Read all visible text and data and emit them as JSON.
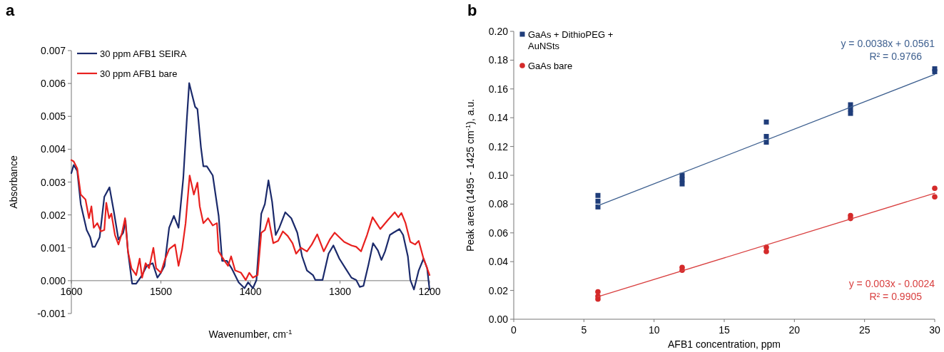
{
  "chart_data": [
    {
      "type": "line",
      "title": "a",
      "xlabel": "Wavenumber, cm$^{-1}$",
      "ylabel": "Absorbance",
      "xlim": [
        1600,
        1200
      ],
      "xticks": [
        1600,
        1500,
        1400,
        1300,
        1200
      ],
      "ylim": [
        -0.001,
        0.007
      ],
      "yticks": [
        {
          "value": -0.001,
          "label": "-0.001"
        },
        {
          "value": 0,
          "label": "0.000"
        },
        {
          "value": 0.001,
          "label": "0.001"
        },
        {
          "value": 0.002,
          "label": "0.002"
        },
        {
          "value": 0.003,
          "label": "0.003"
        },
        {
          "value": 0.004,
          "label": "0.004"
        },
        {
          "value": 0.005,
          "label": "0.005"
        },
        {
          "value": 0.006,
          "label": "0.006"
        },
        {
          "value": 0.007,
          "label": "0.007"
        }
      ],
      "legend": "top left",
      "series": [
        {
          "name": "30 ppm AFB1 SEIRA",
          "color": "#1b2a6b",
          "x": [
            1600,
            1597.4,
            1593.4,
            1589.5,
            1582.9,
            1578.9,
            1576.3,
            1573.7,
            1568.4,
            1563.2,
            1557.4,
            1552.6,
            1547.4,
            1542.1,
            1539.5,
            1536.8,
            1532.1,
            1527.6,
            1521,
            1515.8,
            1509.2,
            1503.9,
            1500,
            1496,
            1490.8,
            1485.5,
            1480.3,
            1475,
            1471,
            1468.4,
            1465.8,
            1461.8,
            1459.2,
            1455.3,
            1452.6,
            1448.7,
            1442.1,
            1435.5,
            1431.6,
            1426.3,
            1421.1,
            1413.2,
            1406.6,
            1402.6,
            1397.3,
            1393.3,
            1387.9,
            1383.9,
            1379.9,
            1375.8,
            1371.8,
            1367.8,
            1361.1,
            1354.4,
            1347.7,
            1342.3,
            1336.9,
            1330.2,
            1327.5,
            1319.5,
            1312.8,
            1307.4,
            1300.7,
            1294,
            1287.2,
            1281.9,
            1277.9,
            1273.8,
            1268.5,
            1263.1,
            1257.7,
            1253.7,
            1249.7,
            1244.3,
            1240.3,
            1233.6,
            1229.5,
            1224.2,
            1221.5,
            1217.4,
            1212.1,
            1206.7,
            1202.7,
            1200
          ],
          "values": [
            0.00327,
            0.00352,
            0.00334,
            0.00233,
            0.00154,
            0.00132,
            0.00103,
            0.00103,
            0.00132,
            0.00255,
            0.00284,
            0.00211,
            0.00125,
            0.00146,
            0.00183,
            0.00089,
            -9e-05,
            -9e-05,
            0.00017,
            0.00045,
            0.00053,
            9e-05,
            0.00024,
            0.00045,
            0.00161,
            0.00197,
            0.00161,
            0.00312,
            0.00493,
            0.00601,
            0.00572,
            0.00529,
            0.00522,
            0.00406,
            0.00348,
            0.00348,
            0.0032,
            0.00197,
            0.0006,
            0.0006,
            0.00038,
            -5e-05,
            -0.00023,
            -5e-05,
            -0.00023,
            2e-05,
            0.00204,
            0.00233,
            0.00305,
            0.0024,
            0.00139,
            0.00161,
            0.00208,
            0.0019,
            0.00146,
            0.00074,
            0.00031,
            0.00017,
            2e-05,
            2e-05,
            0.00082,
            0.00107,
            0.00067,
            0.00038,
            9e-05,
            2e-05,
            -0.00019,
            -0.00016,
            0.00045,
            0.00114,
            0.00092,
            0.00063,
            0.00089,
            0.00139,
            0.00146,
            0.00157,
            0.00139,
            0.00074,
            2e-05,
            -0.00027,
            0.00031,
            0.00067,
            0.00038,
            -0.00027
          ]
        },
        {
          "name": "30 ppm AFB1 bare",
          "color": "#e8211f",
          "x": [
            1600,
            1597.4,
            1593.4,
            1589.5,
            1584.2,
            1580.3,
            1577.6,
            1575,
            1571,
            1567.1,
            1563.2,
            1561,
            1557.9,
            1555.3,
            1551.3,
            1547.4,
            1543.4,
            1540,
            1536.8,
            1532.9,
            1527.6,
            1523.7,
            1521,
            1517.1,
            1513.2,
            1508.4,
            1505.3,
            1500,
            1496,
            1490.8,
            1484.2,
            1480.3,
            1476.3,
            1472.4,
            1467.9,
            1463.2,
            1459.2,
            1456.6,
            1452.6,
            1447.4,
            1442.1,
            1437.4,
            1435.5,
            1428.9,
            1425,
            1421.6,
            1417.1,
            1410.5,
            1405.3,
            1401.3,
            1397.4,
            1392,
            1387.9,
            1383.9,
            1379.9,
            1374.5,
            1369.1,
            1363.8,
            1358.4,
            1353,
            1349,
            1343.6,
            1336.9,
            1331.5,
            1325.4,
            1318.1,
            1311.4,
            1306,
            1300.7,
            1295.3,
            1287.2,
            1281.9,
            1276.5,
            1269.8,
            1263.6,
            1255,
            1247,
            1238.9,
            1234.9,
            1231.4,
            1226.8,
            1221.5,
            1216.1,
            1212.1,
            1206.7,
            1202.7,
            1200
          ],
          "values": [
            0.00367,
            0.00363,
            0.00341,
            0.00262,
            0.00247,
            0.0019,
            0.00226,
            0.00161,
            0.00175,
            0.0015,
            0.00154,
            0.00237,
            0.0019,
            0.00204,
            0.00139,
            0.0011,
            0.00146,
            0.0019,
            0.00089,
            0.00038,
            0.00017,
            0.00067,
            9e-05,
            0.00053,
            0.00038,
            0.001,
            0.00038,
            0.00024,
            0.0006,
            0.00096,
            0.0011,
            0.00045,
            0.00096,
            0.00175,
            0.0032,
            0.00262,
            0.00298,
            0.00226,
            0.00175,
            0.0019,
            0.00168,
            0.00175,
            0.00089,
            0.0006,
            0.00045,
            0.00074,
            0.00031,
            0.00024,
            2e-05,
            0.00024,
            9e-05,
            0.00017,
            0.00146,
            0.00154,
            0.0019,
            0.00114,
            0.00121,
            0.0015,
            0.00136,
            0.00114,
            0.00082,
            0.001,
            0.00089,
            0.0011,
            0.00141,
            0.00089,
            0.00125,
            0.00146,
            0.00132,
            0.00118,
            0.00107,
            0.00103,
            0.00089,
            0.00139,
            0.00193,
            0.00157,
            0.00183,
            0.00208,
            0.00193,
            0.00206,
            0.00175,
            0.00118,
            0.0011,
            0.00121,
            0.00067,
            0.00038,
            0.00017
          ]
        }
      ]
    },
    {
      "type": "scatter",
      "title": "b",
      "xlabel": "AFB1 concentration, ppm",
      "ylabel": "Peak area (1495 - 1425 cm$^{-1}$), a.u.",
      "xlim": [
        0,
        30
      ],
      "xticks": [
        0,
        5,
        10,
        15,
        20,
        25,
        30
      ],
      "ylim": [
        0,
        0.2
      ],
      "yticks": [
        {
          "value": 0,
          "label": "0.00"
        },
        {
          "value": 0.02,
          "label": "0.02"
        },
        {
          "value": 0.04,
          "label": "0.04"
        },
        {
          "value": 0.06,
          "label": "0.06"
        },
        {
          "value": 0.08,
          "label": "0.08"
        },
        {
          "value": 0.1,
          "label": "0.10"
        },
        {
          "value": 0.12,
          "label": "0.12"
        },
        {
          "value": 0.14,
          "label": "0.14"
        },
        {
          "value": 0.16,
          "label": "0.16"
        },
        {
          "value": 0.18,
          "label": "0.18"
        },
        {
          "value": 0.2,
          "label": "0.20"
        }
      ],
      "legend": "top left",
      "annotations": [
        "y = 0.0038x + 0.0561\nR² = 0.9766",
        "y = 0.003x - 0.0024\nR² = 0.9905"
      ],
      "series": [
        {
          "name": "GaAs + DithioPEG + AuNSts",
          "color": "#1f3d7a",
          "marker": "square",
          "x": [
            6,
            6,
            6,
            12,
            12,
            12,
            18,
            18,
            18,
            24,
            24,
            24,
            30,
            30
          ],
          "values": [
            0.086,
            0.082,
            0.078,
            0.1,
            0.097,
            0.094,
            0.137,
            0.127,
            0.123,
            0.149,
            0.146,
            0.143,
            0.174,
            0.172
          ]
        },
        {
          "name": "GaAs bare",
          "color": "#d42a2a",
          "marker": "circle",
          "x": [
            6,
            6,
            6,
            12,
            12,
            18,
            18,
            24,
            24,
            30,
            30
          ],
          "values": [
            0.019,
            0.016,
            0.014,
            0.036,
            0.034,
            0.05,
            0.047,
            0.072,
            0.07,
            0.091,
            0.085
          ]
        },
        {
          "type": "line",
          "color": "#3d5f8f",
          "x": [
            6,
            30
          ],
          "values": [
            0.0789,
            0.1701
          ]
        },
        {
          "type": "line",
          "color": "#d94040",
          "x": [
            6,
            30
          ],
          "values": [
            0.0156,
            0.0876
          ]
        }
      ]
    }
  ]
}
